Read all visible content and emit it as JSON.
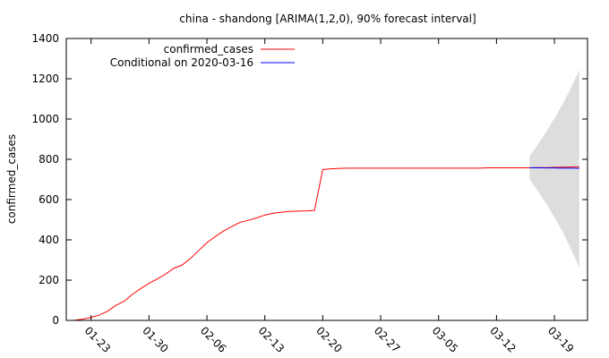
{
  "chart_data": {
    "type": "line",
    "title": "china - shandong [ARIMA(1,2,0), 90% forecast interval]",
    "xlabel": "",
    "ylabel": "confirmed_cases",
    "ylim": [
      0,
      1400
    ],
    "yticks": [
      0,
      200,
      400,
      600,
      800,
      1000,
      1200,
      1400
    ],
    "xlim": [
      "2020-01-20",
      "2020-03-23"
    ],
    "xticks": [
      "01-23",
      "01-30",
      "02-06",
      "02-13",
      "02-20",
      "02-27",
      "03-05",
      "03-12",
      "03-19"
    ],
    "xtick_dates": [
      "2020-01-23",
      "2020-01-30",
      "2020-02-06",
      "2020-02-13",
      "2020-02-20",
      "2020-02-27",
      "2020-03-05",
      "2020-03-12",
      "2020-03-19"
    ],
    "grid": false,
    "legend_placement": "top-left",
    "series": [
      {
        "name": "confirmed_cases",
        "color": "#ff0000",
        "x": [
          "2020-01-21",
          "2020-01-22",
          "2020-01-23",
          "2020-01-24",
          "2020-01-25",
          "2020-01-26",
          "2020-01-27",
          "2020-01-28",
          "2020-01-29",
          "2020-01-30",
          "2020-01-31",
          "2020-02-01",
          "2020-02-02",
          "2020-02-03",
          "2020-02-04",
          "2020-02-05",
          "2020-02-06",
          "2020-02-07",
          "2020-02-08",
          "2020-02-09",
          "2020-02-10",
          "2020-02-11",
          "2020-02-12",
          "2020-02-13",
          "2020-02-14",
          "2020-02-15",
          "2020-02-16",
          "2020-02-17",
          "2020-02-18",
          "2020-02-19",
          "2020-02-20",
          "2020-02-21",
          "2020-02-22",
          "2020-02-23",
          "2020-02-24",
          "2020-02-25",
          "2020-02-26",
          "2020-02-27",
          "2020-02-28",
          "2020-02-29",
          "2020-03-01",
          "2020-03-02",
          "2020-03-03",
          "2020-03-04",
          "2020-03-05",
          "2020-03-06",
          "2020-03-07",
          "2020-03-08",
          "2020-03-09",
          "2020-03-10",
          "2020-03-11",
          "2020-03-12",
          "2020-03-13",
          "2020-03-14",
          "2020-03-15",
          "2020-03-16",
          "2020-03-17",
          "2020-03-18",
          "2020-03-19",
          "2020-03-20",
          "2020-03-21",
          "2020-03-22"
        ],
        "values": [
          1,
          6,
          15,
          27,
          46,
          75,
          95,
          130,
          158,
          184,
          206,
          230,
          259,
          275,
          307,
          347,
          386,
          416,
          444,
          466,
          487,
          497,
          509,
          523,
          532,
          537,
          541,
          543,
          544,
          546,
          749,
          753,
          755,
          756,
          756,
          756,
          756,
          756,
          756,
          756,
          756,
          756,
          756,
          756,
          756,
          756,
          756,
          756,
          756,
          756,
          758,
          758,
          758,
          758,
          758,
          758,
          759,
          759,
          760,
          761,
          762,
          763
        ]
      },
      {
        "name": "Conditional on 2020-03-16",
        "color": "#0000ff",
        "x": [
          "2020-03-16",
          "2020-03-17",
          "2020-03-18",
          "2020-03-19",
          "2020-03-20",
          "2020-03-21",
          "2020-03-22"
        ],
        "values": [
          758,
          758,
          757,
          757,
          756,
          756,
          755
        ]
      }
    ],
    "forecast_interval": {
      "level": "90%",
      "color": "#dddddd",
      "x": [
        "2020-03-16",
        "2020-03-17",
        "2020-03-18",
        "2020-03-19",
        "2020-03-20",
        "2020-03-21",
        "2020-03-22"
      ],
      "lower": [
        700,
        642,
        580,
        512,
        440,
        355,
        262
      ],
      "upper": [
        815,
        874,
        936,
        1002,
        1075,
        1155,
        1245
      ]
    }
  }
}
